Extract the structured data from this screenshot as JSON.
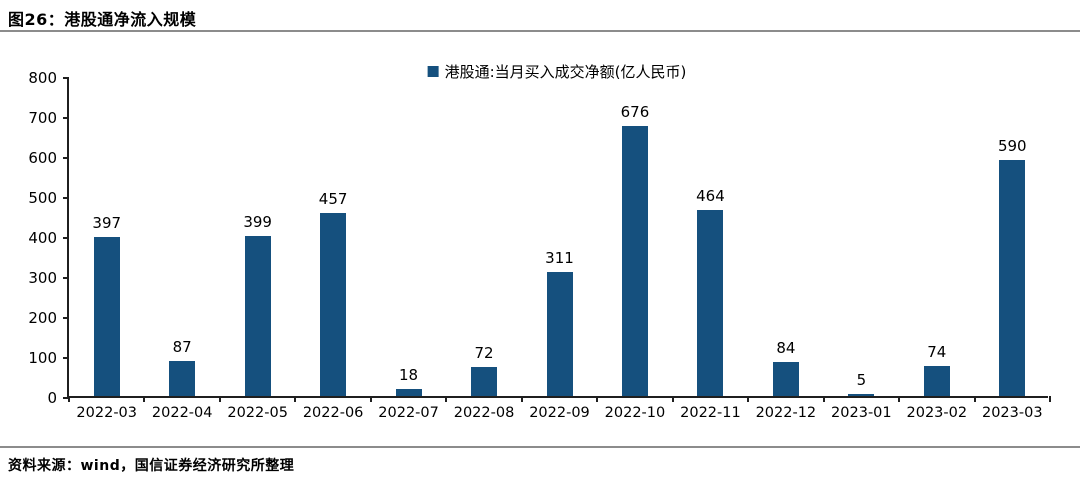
{
  "figure": {
    "title": "图26：港股通净流入规模",
    "source": "资料来源：wind，国信证券经济研究所整理"
  },
  "legend": {
    "label": "港股通:当月买入成交净额(亿人民币)"
  },
  "colors": {
    "bar": "#15507E",
    "axis": "#1F1F1F",
    "rule": "#8C8C8C",
    "text": "#000000",
    "background": "#FFFFFF"
  },
  "chart_data": {
    "type": "bar",
    "title": "港股通:当月买入成交净额(亿人民币)",
    "categories": [
      "2022-03",
      "2022-04",
      "2022-05",
      "2022-06",
      "2022-07",
      "2022-08",
      "2022-09",
      "2022-10",
      "2022-11",
      "2022-12",
      "2023-01",
      "2023-02",
      "2023-03"
    ],
    "values": [
      397,
      87,
      399,
      457,
      18,
      72,
      311,
      676,
      464,
      84,
      5,
      74,
      590
    ],
    "xlabel": "",
    "ylabel": "",
    "ylim": [
      0,
      800
    ],
    "yticks": [
      0,
      100,
      200,
      300,
      400,
      500,
      600,
      700,
      800
    ],
    "grid": false,
    "data_labels": true,
    "legend_position": "top-center"
  }
}
